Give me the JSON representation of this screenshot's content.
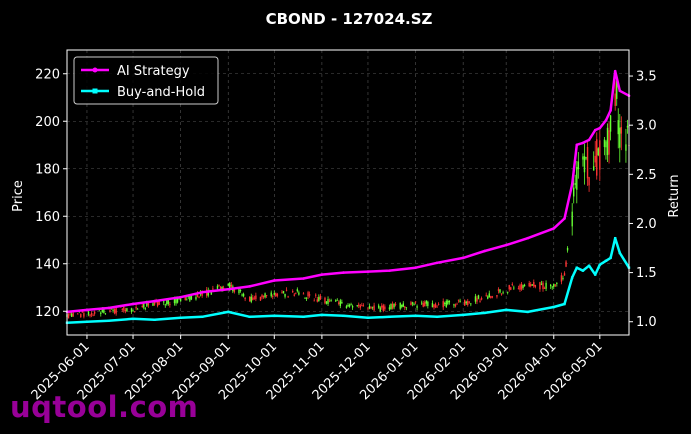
{
  "chart_data": {
    "type": "line",
    "title": "CBOND - 127024.SZ",
    "xlabel": "",
    "ylabel_left": "Price",
    "ylabel_right": "Return",
    "grid": true,
    "legend_placement": "top-left",
    "x_range": [
      "2025-05-19",
      "2026-05-20"
    ],
    "ylim_left": [
      110,
      230
    ],
    "ylim_right": [
      0.865,
      3.765
    ],
    "x_ticks": [
      "2025-06-01",
      "2025-07-01",
      "2025-08-01",
      "2025-09-01",
      "2025-10-01",
      "2025-11-01",
      "2025-12-01",
      "2026-01-01",
      "2026-02-01",
      "2026-03-01",
      "2026-04-01",
      "2026-05-01"
    ],
    "y_ticks_left": [
      "120",
      "140",
      "160",
      "180",
      "200",
      "220"
    ],
    "y_ticks_right": [
      "1.0",
      "1.5",
      "2.0",
      "2.5",
      "3.0",
      "3.5"
    ],
    "series": [
      {
        "name": "AI Strategy",
        "axis": "right",
        "color": "#ff00ff",
        "x": [
          "2025-05-19",
          "2025-06-01",
          "2025-06-15",
          "2025-07-01",
          "2025-07-15",
          "2025-08-01",
          "2025-08-15",
          "2025-09-01",
          "2025-09-15",
          "2025-10-01",
          "2025-10-20",
          "2025-11-01",
          "2025-11-15",
          "2025-12-01",
          "2025-12-15",
          "2026-01-01",
          "2026-01-15",
          "2026-02-01",
          "2026-02-15",
          "2026-03-01",
          "2026-03-15",
          "2026-04-01",
          "2026-04-08",
          "2026-04-13",
          "2026-04-16",
          "2026-04-20",
          "2026-04-24",
          "2026-04-28",
          "2026-05-01",
          "2026-05-05",
          "2026-05-08",
          "2026-05-11",
          "2026-05-14",
          "2026-05-20"
        ],
        "values": [
          1.1,
          1.12,
          1.14,
          1.18,
          1.21,
          1.25,
          1.3,
          1.33,
          1.36,
          1.42,
          1.44,
          1.48,
          1.5,
          1.51,
          1.52,
          1.55,
          1.6,
          1.65,
          1.72,
          1.78,
          1.85,
          1.95,
          2.05,
          2.4,
          2.8,
          2.82,
          2.85,
          2.95,
          2.97,
          3.05,
          3.15,
          3.55,
          3.35,
          3.3
        ]
      },
      {
        "name": "Buy-and-Hold",
        "axis": "right",
        "color": "#00ffff",
        "x": [
          "2025-05-19",
          "2025-06-01",
          "2025-06-15",
          "2025-07-01",
          "2025-07-15",
          "2025-08-01",
          "2025-08-15",
          "2025-09-01",
          "2025-09-15",
          "2025-10-01",
          "2025-10-20",
          "2025-11-01",
          "2025-11-15",
          "2025-12-01",
          "2025-12-15",
          "2026-01-01",
          "2026-01-15",
          "2026-02-01",
          "2026-02-15",
          "2026-03-01",
          "2026-03-15",
          "2026-04-01",
          "2026-04-08",
          "2026-04-13",
          "2026-04-16",
          "2026-04-20",
          "2026-04-24",
          "2026-04-28",
          "2026-05-01",
          "2026-05-05",
          "2026-05-08",
          "2026-05-11",
          "2026-05-14",
          "2026-05-20"
        ],
        "values": [
          0.99,
          1.0,
          1.01,
          1.03,
          1.02,
          1.04,
          1.05,
          1.1,
          1.05,
          1.06,
          1.05,
          1.07,
          1.06,
          1.04,
          1.05,
          1.06,
          1.05,
          1.07,
          1.09,
          1.12,
          1.1,
          1.15,
          1.18,
          1.45,
          1.55,
          1.52,
          1.57,
          1.48,
          1.58,
          1.62,
          1.65,
          1.85,
          1.7,
          1.55
        ]
      }
    ],
    "candles": {
      "axis": "left",
      "up_color": "#66ff33",
      "down_color": "#ff3333",
      "price_path": {
        "x": [
          "2025-05-19",
          "2025-06-10",
          "2025-07-01",
          "2025-07-25",
          "2025-08-15",
          "2025-09-01",
          "2025-09-15",
          "2025-10-01",
          "2025-10-15",
          "2025-11-01",
          "2025-11-15",
          "2025-12-01",
          "2025-12-20",
          "2026-01-05",
          "2026-01-20",
          "2026-02-05",
          "2026-02-20",
          "2026-03-05",
          "2026-03-20",
          "2026-04-01",
          "2026-04-08",
          "2026-04-13",
          "2026-04-18",
          "2026-04-24",
          "2026-04-28",
          "2026-05-01",
          "2026-05-05",
          "2026-05-08",
          "2026-05-11",
          "2026-05-14",
          "2026-05-20"
        ],
        "values": [
          118,
          120,
          121,
          124,
          127,
          131,
          125,
          127,
          128,
          125,
          123,
          121,
          122,
          123,
          123,
          124,
          127,
          130,
          131,
          130,
          135,
          160,
          188,
          180,
          184,
          188,
          192,
          196,
          214,
          196,
          190
        ]
      }
    }
  }
}
